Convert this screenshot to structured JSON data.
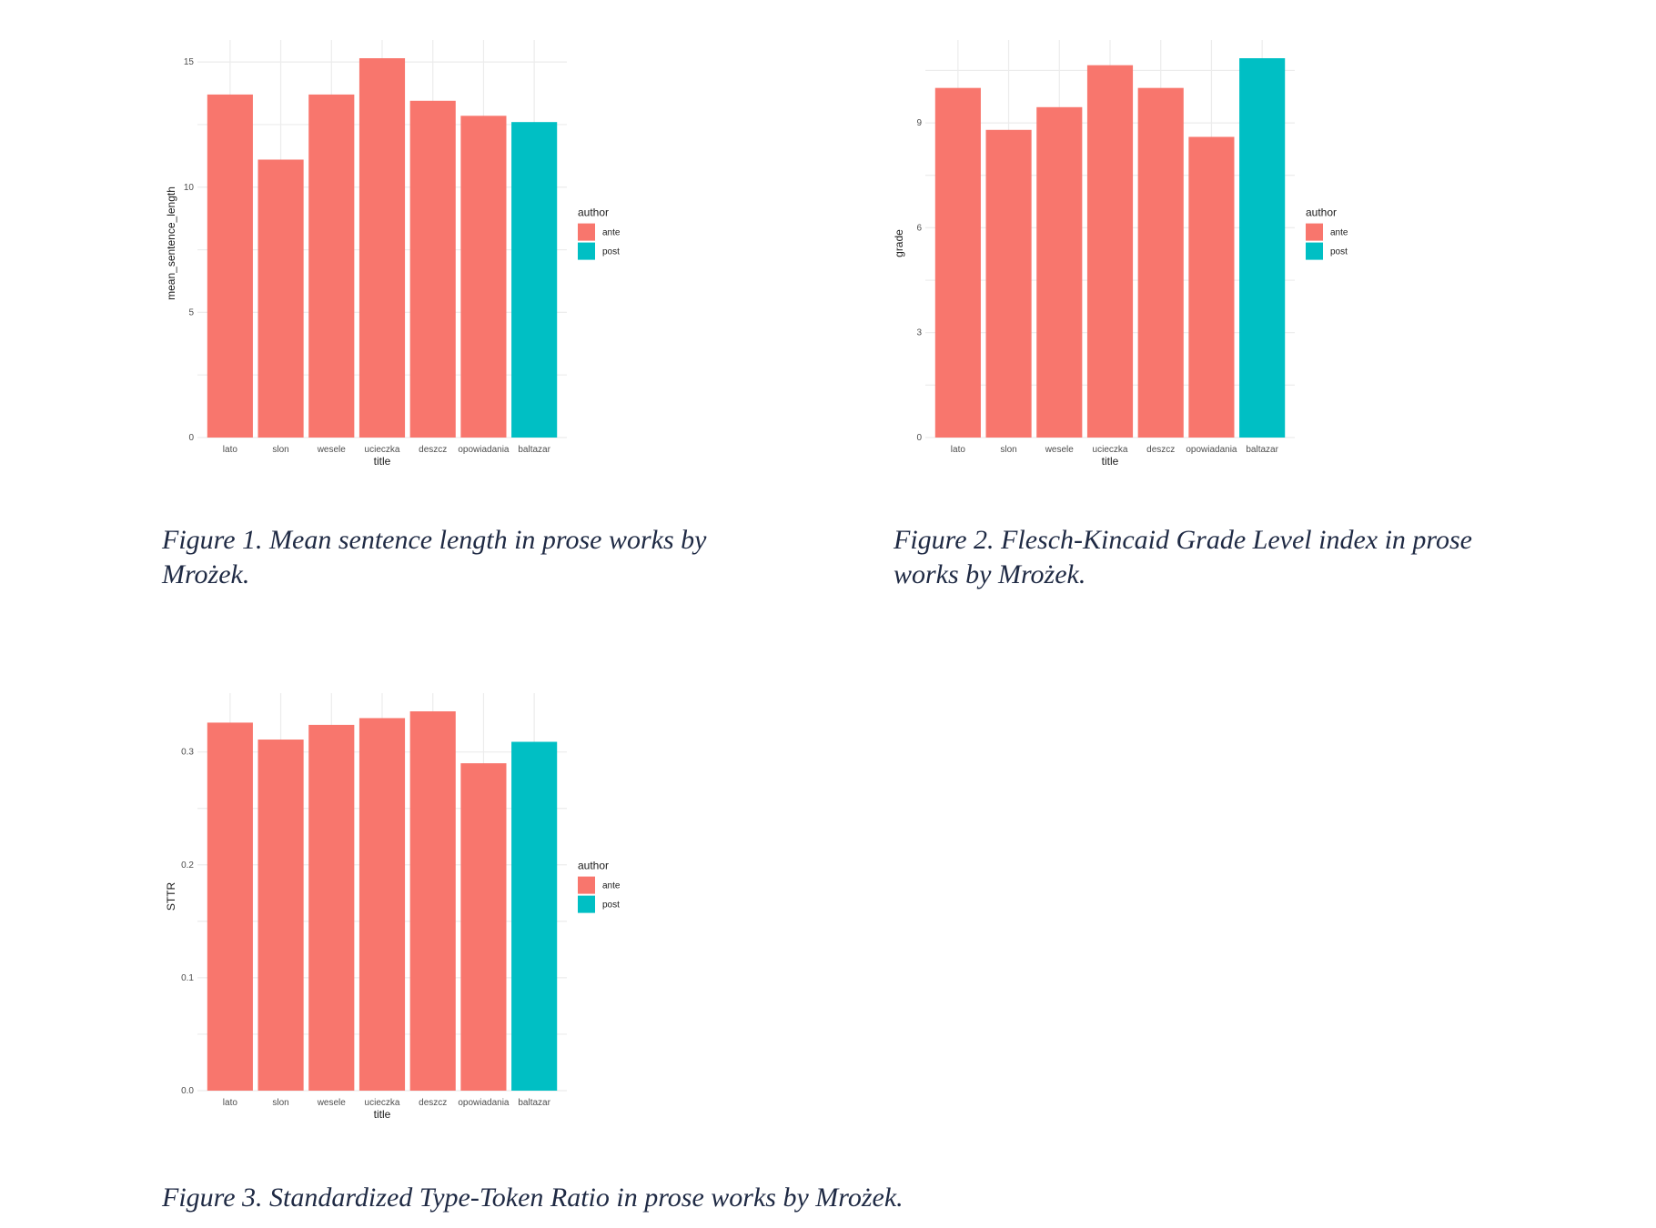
{
  "chart_data": [
    {
      "type": "bar",
      "title": "",
      "categories": [
        "lato",
        "slon",
        "wesele",
        "ucieczka",
        "deszcz",
        "opowiadania",
        "baltazar"
      ],
      "values": [
        13.7,
        11.1,
        13.7,
        15.15,
        13.45,
        12.85,
        12.6
      ],
      "groups": [
        "ante",
        "ante",
        "ante",
        "ante",
        "ante",
        "ante",
        "post"
      ],
      "xlabel": "title",
      "ylabel": "mean_sentence_length",
      "ylim": [
        0,
        15.15
      ],
      "yticks": [
        0,
        5,
        10,
        15
      ],
      "ytick_labels": [
        "0",
        "5",
        "10",
        "15"
      ],
      "grid": true,
      "legend": {
        "title": "author",
        "entries": [
          "ante",
          "post"
        ],
        "position": "right"
      }
    },
    {
      "type": "bar",
      "title": "",
      "categories": [
        "lato",
        "slon",
        "wesele",
        "ucieczka",
        "deszcz",
        "opowiadania",
        "baltazar"
      ],
      "values": [
        10.0,
        8.8,
        9.45,
        10.65,
        10.0,
        8.6,
        10.85
      ],
      "groups": [
        "ante",
        "ante",
        "ante",
        "ante",
        "ante",
        "ante",
        "post"
      ],
      "xlabel": "title",
      "ylabel": "grade",
      "ylim": [
        0,
        10.85
      ],
      "yticks": [
        0,
        3,
        6,
        9
      ],
      "ytick_labels": [
        "0",
        "3",
        "6",
        "9"
      ],
      "grid": true,
      "legend": {
        "title": "author",
        "entries": [
          "ante",
          "post"
        ],
        "position": "right"
      }
    },
    {
      "type": "bar",
      "title": "",
      "categories": [
        "lato",
        "slon",
        "wesele",
        "ucieczka",
        "deszcz",
        "opowiadania",
        "baltazar"
      ],
      "values": [
        0.326,
        0.311,
        0.324,
        0.33,
        0.336,
        0.29,
        0.309
      ],
      "groups": [
        "ante",
        "ante",
        "ante",
        "ante",
        "ante",
        "ante",
        "post"
      ],
      "xlabel": "title",
      "ylabel": "STTR",
      "ylim": [
        0,
        0.336
      ],
      "yticks": [
        0.0,
        0.1,
        0.2,
        0.3
      ],
      "ytick_labels": [
        "0.0",
        "0.1",
        "0.2",
        "0.3"
      ],
      "grid": true,
      "legend": {
        "title": "author",
        "entries": [
          "ante",
          "post"
        ],
        "position": "right"
      }
    }
  ],
  "colors": {
    "ante": "#f8766d",
    "post": "#00bfc4"
  },
  "captions": {
    "fig1": "Figure 1.  Mean sentence length in prose works by Mrożek.",
    "fig2": "Figure 2.  Flesch-Kincaid Grade Level index in prose works by Mrożek.",
    "fig3": "Figure 3. Standardized Type-Token Ratio in prose works by Mrożek."
  }
}
